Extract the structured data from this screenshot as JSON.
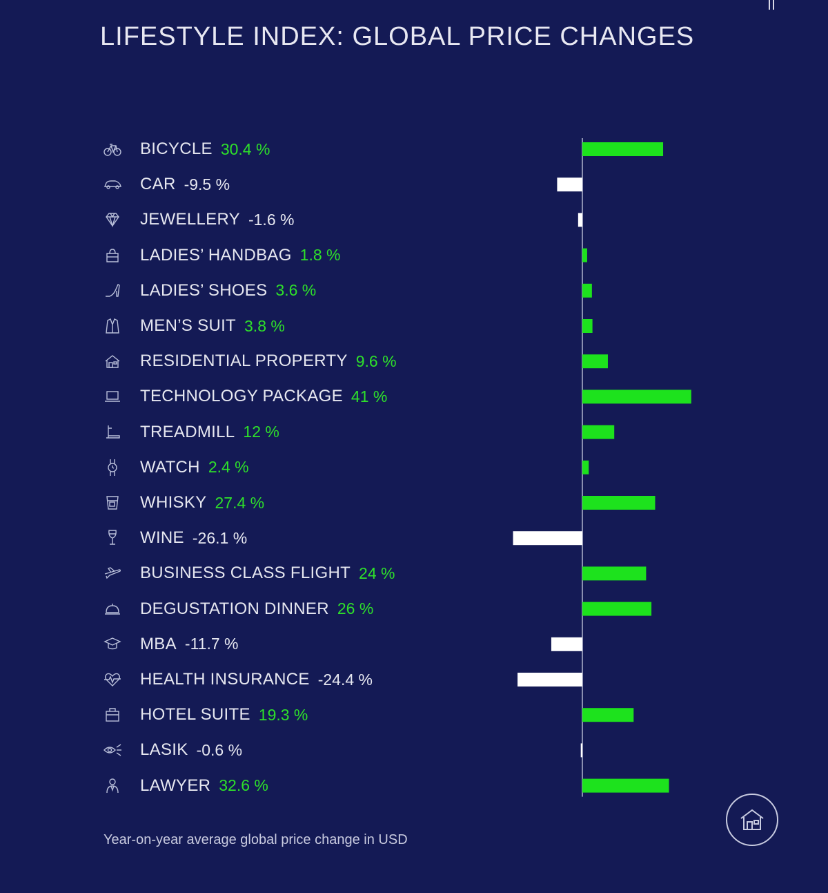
{
  "title": "LIFESTYLE INDEX: GLOBAL PRICE CHANGES",
  "footnote": "Year-on-year average global price change in USD",
  "colors": {
    "background": "#141a55",
    "positive": "#1de21d",
    "negative": "#ffffff",
    "axis": "#8a8fb0"
  },
  "home_icon": "home-icon",
  "chart_data": {
    "type": "bar",
    "orientation": "horizontal",
    "title": "LIFESTYLE INDEX: GLOBAL PRICE CHANGES",
    "xlabel": "",
    "ylabel": "",
    "unit": "%",
    "xlim": [
      -30,
      45
    ],
    "grid": false,
    "categories": [
      "BICYCLE",
      "CAR",
      "JEWELLERY",
      "LADIES’ HANDBAG",
      "LADIES’ SHOES",
      "MEN’S SUIT",
      "RESIDENTIAL PROPERTY",
      "TECHNOLOGY PACKAGE",
      "TREADMILL",
      "WATCH",
      "WHISKY",
      "WINE",
      "BUSINESS CLASS FLIGHT",
      "DEGUSTATION DINNER",
      "MBA",
      "HEALTH INSURANCE",
      "HOTEL SUITE",
      "LASIK",
      "LAWYER"
    ],
    "values": [
      30.4,
      -9.5,
      -1.6,
      1.8,
      3.6,
      3.8,
      9.6,
      41,
      12,
      2.4,
      27.4,
      -26.1,
      24,
      26,
      -11.7,
      -24.4,
      19.3,
      -0.6,
      32.6
    ],
    "value_labels": [
      "30.4 %",
      "-9.5 %",
      "-1.6 %",
      "1.8 %",
      "3.6 %",
      "3.8 %",
      "9.6 %",
      "41 %",
      "12 %",
      "2.4 %",
      "27.4 %",
      "-26.1 %",
      "24 %",
      "26 %",
      "-11.7 %",
      "-24.4 %",
      "19.3 %",
      "-0.6 %",
      "32.6 %"
    ],
    "icons": [
      "bicycle-icon",
      "car-icon",
      "diamond-icon",
      "handbag-icon",
      "high-heel-icon",
      "suit-icon",
      "house-icon",
      "laptop-icon",
      "treadmill-icon",
      "watch-icon",
      "whisky-glass-icon",
      "wine-glass-icon",
      "airplane-icon",
      "cloche-icon",
      "graduation-cap-icon",
      "heartbeat-icon",
      "suitcase-icon",
      "eye-laser-icon",
      "lawyer-icon"
    ]
  }
}
